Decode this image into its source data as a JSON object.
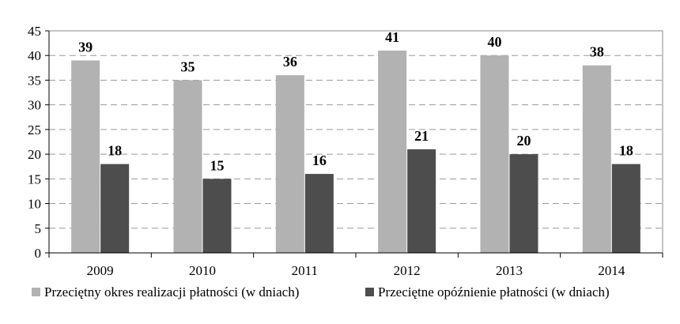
{
  "chart_data": {
    "type": "bar",
    "categories": [
      "2009",
      "2010",
      "2011",
      "2012",
      "2013",
      "2014"
    ],
    "series": [
      {
        "name": "Przeciętny okres realizacji płatności (w dniach)",
        "values": [
          39,
          35,
          36,
          41,
          40,
          38
        ],
        "color": "#b2b2b2"
      },
      {
        "name": "Przeciętne opóźnienie płatności (w dniach)",
        "values": [
          18,
          15,
          16,
          21,
          20,
          18
        ],
        "color": "#4d4d4d"
      }
    ],
    "ylim": [
      0,
      45
    ],
    "yticks": [
      "0",
      "5",
      "10",
      "15",
      "20",
      "25",
      "30",
      "35",
      "40",
      "45"
    ],
    "grid": true,
    "legend_position": "bottom",
    "data_labels": true
  }
}
